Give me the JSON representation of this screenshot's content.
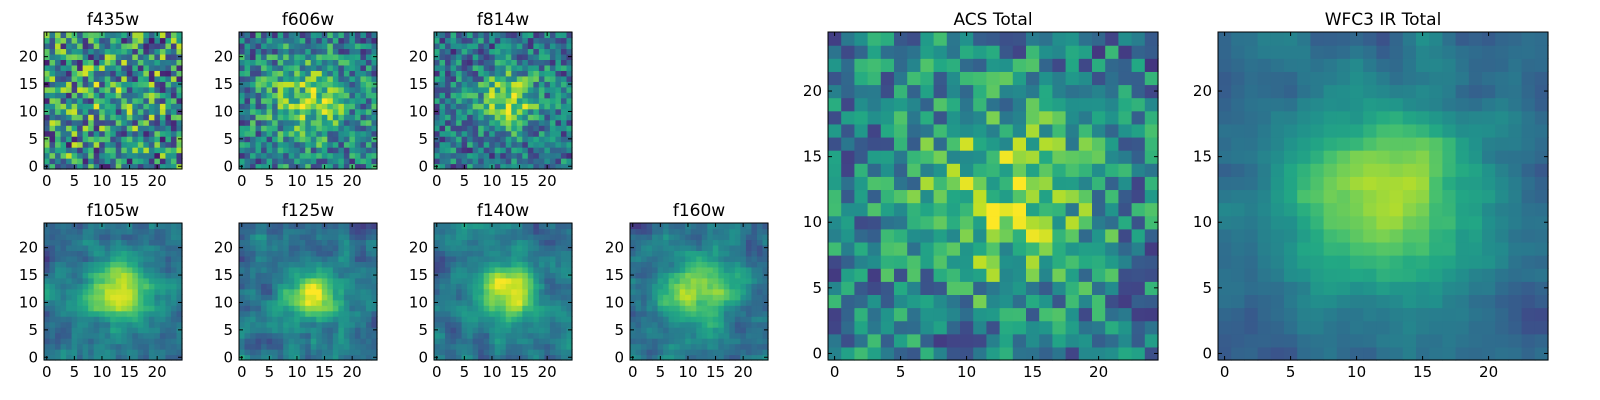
{
  "figure": {
    "panels": [
      {
        "title": "f435w",
        "style": "noise",
        "seed": 1,
        "cx": 12,
        "cy": 12,
        "amp": 0.1,
        "sigma": 6.0,
        "noise": 0.85,
        "base": 0.48
      },
      {
        "title": "f606w",
        "style": "noise",
        "seed": 2,
        "cx": 12,
        "cy": 12,
        "amp": 0.35,
        "sigma": 5.0,
        "noise": 0.6,
        "base": 0.42
      },
      {
        "title": "f814w",
        "style": "noise",
        "seed": 3,
        "cx": 13,
        "cy": 12,
        "amp": 0.45,
        "sigma": 4.0,
        "noise": 0.55,
        "base": 0.38
      },
      {
        "title": "f105w",
        "style": "smooth",
        "seed": 4,
        "cx": 13,
        "cy": 12,
        "amp": 0.55,
        "sigma": 4.0,
        "noise": 0.3,
        "base": 0.38
      },
      {
        "title": "f125w",
        "style": "smooth",
        "seed": 5,
        "cx": 12,
        "cy": 11,
        "amp": 0.55,
        "sigma": 3.5,
        "noise": 0.35,
        "base": 0.38
      },
      {
        "title": "f140w",
        "style": "smooth",
        "seed": 6,
        "cx": 13,
        "cy": 12,
        "amp": 0.55,
        "sigma": 4.0,
        "noise": 0.3,
        "base": 0.38
      },
      {
        "title": "f160w",
        "style": "smooth",
        "seed": 7,
        "cx": 12,
        "cy": 12,
        "amp": 0.55,
        "sigma": 4.5,
        "noise": 0.3,
        "base": 0.36
      },
      {
        "title": "ACS Total",
        "style": "noise",
        "seed": 8,
        "cx": 13,
        "cy": 12,
        "amp": 0.4,
        "sigma": 5.0,
        "noise": 0.55,
        "base": 0.42
      },
      {
        "title": "WFC3 IR Total",
        "style": "smooth",
        "seed": 9,
        "cx": 12,
        "cy": 12,
        "amp": 0.55,
        "sigma": 5.0,
        "noise": 0.18,
        "base": 0.34
      }
    ]
  },
  "chart_data": [
    {
      "type": "heatmap",
      "title": "f435w",
      "grid": [
        25,
        25
      ],
      "xlim": [
        -0.5,
        24.5
      ],
      "ylim": [
        -0.5,
        24.5
      ],
      "xticks": [
        "0",
        "5",
        "10",
        "15",
        "20"
      ],
      "yticks": [
        "0",
        "5",
        "10",
        "15",
        "20"
      ],
      "colormap": "viridis"
    },
    {
      "type": "heatmap",
      "title": "f606w",
      "grid": [
        25,
        25
      ],
      "xlim": [
        -0.5,
        24.5
      ],
      "ylim": [
        -0.5,
        24.5
      ],
      "xticks": [
        "0",
        "5",
        "10",
        "15",
        "20"
      ],
      "yticks": [
        "0",
        "5",
        "10",
        "15",
        "20"
      ],
      "colormap": "viridis"
    },
    {
      "type": "heatmap",
      "title": "f814w",
      "grid": [
        25,
        25
      ],
      "xlim": [
        -0.5,
        24.5
      ],
      "ylim": [
        -0.5,
        24.5
      ],
      "xticks": [
        "0",
        "5",
        "10",
        "15",
        "20"
      ],
      "yticks": [
        "0",
        "5",
        "10",
        "15",
        "20"
      ],
      "colormap": "viridis"
    },
    {
      "type": "heatmap",
      "title": "f105w",
      "grid": [
        25,
        25
      ],
      "xlim": [
        -0.5,
        24.5
      ],
      "ylim": [
        -0.5,
        24.5
      ],
      "xticks": [
        "0",
        "5",
        "10",
        "15",
        "20"
      ],
      "yticks": [
        "0",
        "5",
        "10",
        "15",
        "20"
      ],
      "colormap": "viridis"
    },
    {
      "type": "heatmap",
      "title": "f125w",
      "grid": [
        25,
        25
      ],
      "xlim": [
        -0.5,
        24.5
      ],
      "ylim": [
        -0.5,
        24.5
      ],
      "xticks": [
        "0",
        "5",
        "10",
        "15",
        "20"
      ],
      "yticks": [
        "0",
        "5",
        "10",
        "15",
        "20"
      ],
      "colormap": "viridis"
    },
    {
      "type": "heatmap",
      "title": "f140w",
      "grid": [
        25,
        25
      ],
      "xlim": [
        -0.5,
        24.5
      ],
      "ylim": [
        -0.5,
        24.5
      ],
      "xticks": [
        "0",
        "5",
        "10",
        "15",
        "20"
      ],
      "yticks": [
        "0",
        "5",
        "10",
        "15",
        "20"
      ],
      "colormap": "viridis"
    },
    {
      "type": "heatmap",
      "title": "f160w",
      "grid": [
        25,
        25
      ],
      "xlim": [
        -0.5,
        24.5
      ],
      "ylim": [
        -0.5,
        24.5
      ],
      "xticks": [
        "0",
        "5",
        "10",
        "15",
        "20"
      ],
      "yticks": [
        "0",
        "5",
        "10",
        "15",
        "20"
      ],
      "colormap": "viridis"
    },
    {
      "type": "heatmap",
      "title": "ACS Total",
      "grid": [
        25,
        25
      ],
      "xlim": [
        -0.5,
        24.5
      ],
      "ylim": [
        -0.5,
        24.5
      ],
      "xticks": [
        "0",
        "5",
        "10",
        "15",
        "20"
      ],
      "yticks": [
        "0",
        "5",
        "10",
        "15",
        "20"
      ],
      "colormap": "viridis"
    },
    {
      "type": "heatmap",
      "title": "WFC3 IR Total",
      "grid": [
        25,
        25
      ],
      "xlim": [
        -0.5,
        24.5
      ],
      "ylim": [
        -0.5,
        24.5
      ],
      "xticks": [
        "0",
        "5",
        "10",
        "15",
        "20"
      ],
      "yticks": [
        "0",
        "5",
        "10",
        "15",
        "20"
      ],
      "colormap": "viridis"
    }
  ]
}
